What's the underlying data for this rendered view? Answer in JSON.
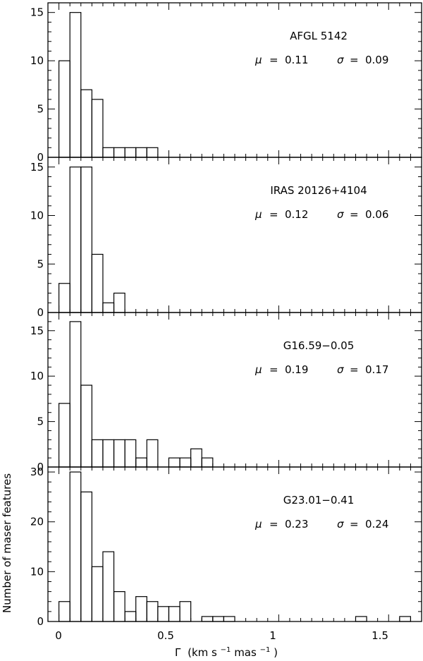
{
  "chart_data": [
    {
      "type": "bar",
      "source_label": "AFGL 5142",
      "stats": {
        "mu_label": "μ",
        "mu": "0.11",
        "sigma_label": "σ",
        "sigma": "0.09"
      },
      "bin_width": 0.05,
      "bins": [
        {
          "x": 0.0,
          "count": 10
        },
        {
          "x": 0.05,
          "count": 15
        },
        {
          "x": 0.1,
          "count": 7
        },
        {
          "x": 0.15,
          "count": 6
        },
        {
          "x": 0.2,
          "count": 1
        },
        {
          "x": 0.25,
          "count": 1
        },
        {
          "x": 0.3,
          "count": 1
        },
        {
          "x": 0.35,
          "count": 1
        },
        {
          "x": 0.4,
          "count": 1
        }
      ],
      "ylim": [
        0,
        16
      ],
      "yticks": [
        "0",
        "5",
        "10",
        "15"
      ]
    },
    {
      "type": "bar",
      "source_label": "IRAS 20126+4104",
      "stats": {
        "mu_label": "μ",
        "mu": "0.12",
        "sigma_label": "σ",
        "sigma": "0.06"
      },
      "bin_width": 0.05,
      "bins": [
        {
          "x": 0.0,
          "count": 3
        },
        {
          "x": 0.05,
          "count": 15
        },
        {
          "x": 0.1,
          "count": 15
        },
        {
          "x": 0.15,
          "count": 6
        },
        {
          "x": 0.2,
          "count": 1
        },
        {
          "x": 0.25,
          "count": 2
        }
      ],
      "ylim": [
        0,
        16
      ],
      "yticks": [
        "0",
        "5",
        "10",
        "15"
      ]
    },
    {
      "type": "bar",
      "source_label": "G16.59−0.05",
      "stats": {
        "mu_label": "μ",
        "mu": "0.19",
        "sigma_label": "σ",
        "sigma": "0.17"
      },
      "bin_width": 0.05,
      "bins": [
        {
          "x": 0.0,
          "count": 7
        },
        {
          "x": 0.05,
          "count": 16
        },
        {
          "x": 0.1,
          "count": 9
        },
        {
          "x": 0.15,
          "count": 3
        },
        {
          "x": 0.2,
          "count": 3
        },
        {
          "x": 0.25,
          "count": 3
        },
        {
          "x": 0.3,
          "count": 3
        },
        {
          "x": 0.35,
          "count": 1
        },
        {
          "x": 0.4,
          "count": 3
        },
        {
          "x": 0.45,
          "count": 0
        },
        {
          "x": 0.5,
          "count": 1
        },
        {
          "x": 0.55,
          "count": 1
        },
        {
          "x": 0.6,
          "count": 2
        },
        {
          "x": 0.65,
          "count": 1
        }
      ],
      "ylim": [
        0,
        17
      ],
      "yticks": [
        "0",
        "5",
        "10",
        "15"
      ]
    },
    {
      "type": "bar",
      "source_label": "G23.01−0.41",
      "stats": {
        "mu_label": "μ",
        "mu": "0.23",
        "sigma_label": "σ",
        "sigma": "0.24"
      },
      "bin_width": 0.05,
      "bins": [
        {
          "x": 0.0,
          "count": 4
        },
        {
          "x": 0.05,
          "count": 30
        },
        {
          "x": 0.1,
          "count": 26
        },
        {
          "x": 0.15,
          "count": 11
        },
        {
          "x": 0.2,
          "count": 14
        },
        {
          "x": 0.25,
          "count": 6
        },
        {
          "x": 0.3,
          "count": 2
        },
        {
          "x": 0.35,
          "count": 5
        },
        {
          "x": 0.4,
          "count": 4
        },
        {
          "x": 0.45,
          "count": 3
        },
        {
          "x": 0.5,
          "count": 3
        },
        {
          "x": 0.55,
          "count": 4
        },
        {
          "x": 0.6,
          "count": 0
        },
        {
          "x": 0.65,
          "count": 1
        },
        {
          "x": 0.7,
          "count": 1
        },
        {
          "x": 0.75,
          "count": 1
        },
        {
          "x": 1.35,
          "count": 1
        },
        {
          "x": 1.55,
          "count": 1
        }
      ],
      "ylim": [
        0,
        31
      ],
      "yticks": [
        "0",
        "10",
        "20",
        "30"
      ]
    }
  ],
  "axes": {
    "xlim": [
      -0.05,
      1.65
    ],
    "xticks": [
      {
        "v": 0,
        "label": "0"
      },
      {
        "v": 0.5,
        "label": "0.5"
      },
      {
        "v": 1,
        "label": "1"
      },
      {
        "v": 1.5,
        "label": "1.5"
      }
    ],
    "xlabel": {
      "gamma": "Γ",
      "open": "(km s",
      "exp1": "−1",
      "mid": " mas",
      "exp2": "−1",
      "close": ")"
    },
    "ylabel": "Number of maser features"
  },
  "colors": {
    "ink": "#000000",
    "background": "#ffffff"
  }
}
